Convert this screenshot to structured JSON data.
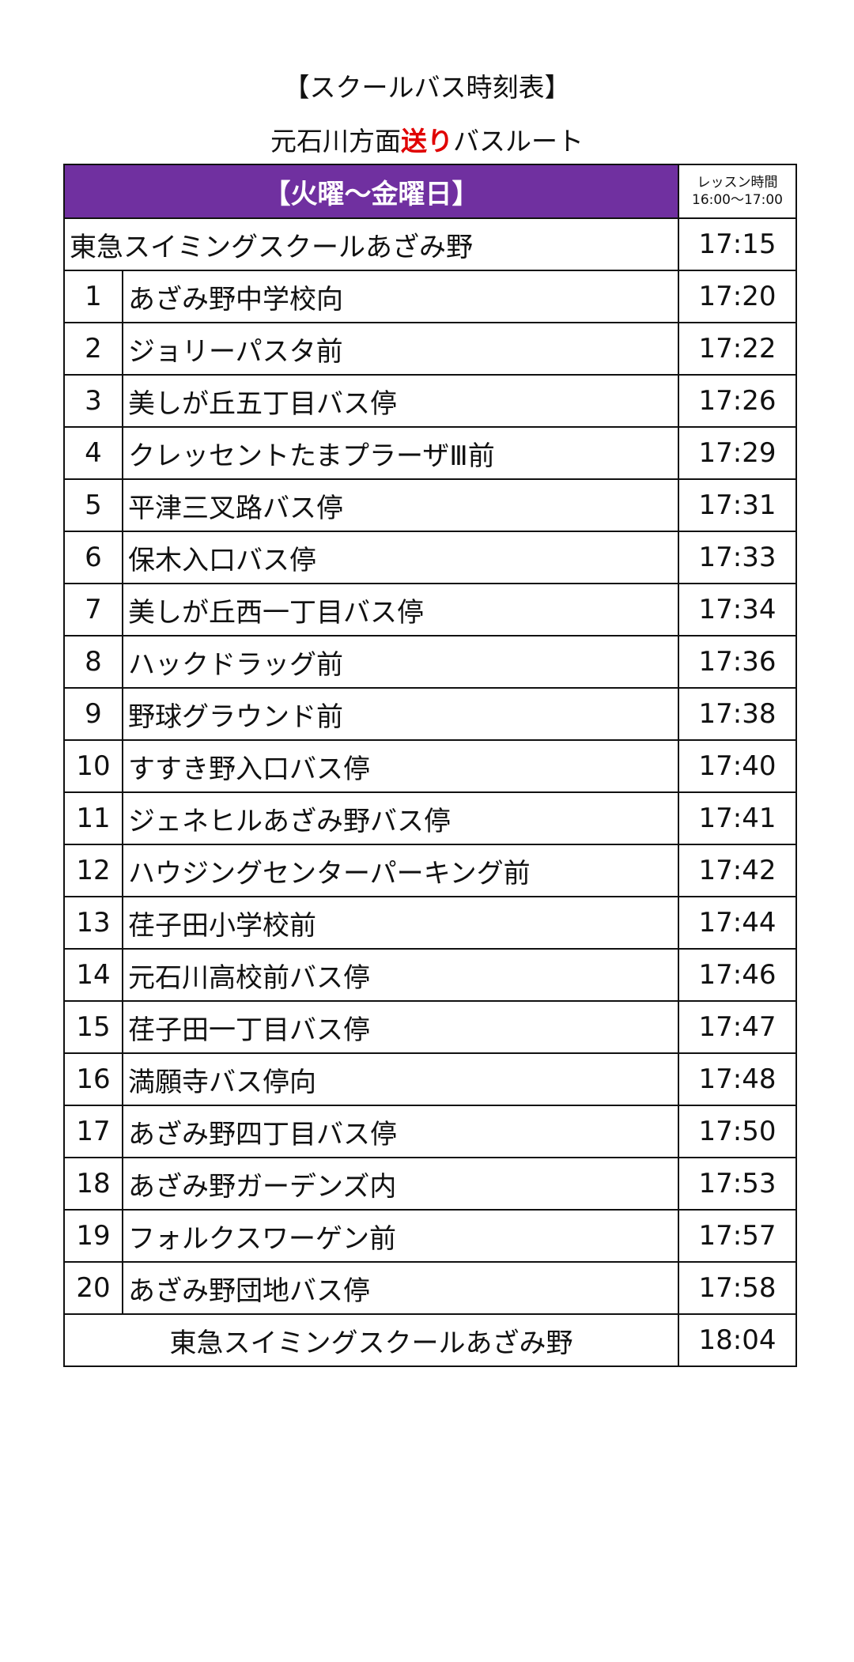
{
  "title": "【スクールバス時刻表】",
  "subtitle": {
    "before": "元石川方面",
    "highlight": "送り",
    "after": "バスルート",
    "highlight_color": "#e00000"
  },
  "header": {
    "days": "【火曜～金曜日】",
    "lesson_label": "レッスン時間",
    "lesson_time": "16:00～17:00",
    "bg_color": "#7030a0"
  },
  "start": {
    "name": "東急スイミングスクールあざみ野",
    "time": "17:15"
  },
  "stops": [
    {
      "no": "1",
      "name": "あざみ野中学校向",
      "time": "17:20"
    },
    {
      "no": "2",
      "name": "ジョリーパスタ前",
      "time": "17:22"
    },
    {
      "no": "3",
      "name": "美しが丘五丁目バス停",
      "time": "17:26"
    },
    {
      "no": "4",
      "name": "クレッセントたまプラーザⅢ前",
      "time": "17:29"
    },
    {
      "no": "5",
      "name": "平津三叉路バス停",
      "time": "17:31"
    },
    {
      "no": "6",
      "name": "保木入口バス停",
      "time": "17:33"
    },
    {
      "no": "7",
      "name": "美しが丘西一丁目バス停",
      "time": "17:34"
    },
    {
      "no": "8",
      "name": "ハックドラッグ前",
      "time": "17:36"
    },
    {
      "no": "9",
      "name": "野球グラウンド前",
      "time": "17:38"
    },
    {
      "no": "10",
      "name": "すすき野入口バス停",
      "time": "17:40"
    },
    {
      "no": "11",
      "name": "ジェネヒルあざみ野バス停",
      "time": "17:41"
    },
    {
      "no": "12",
      "name": "ハウジングセンターパーキング前",
      "time": "17:42"
    },
    {
      "no": "13",
      "name": "荏子田小学校前",
      "time": "17:44"
    },
    {
      "no": "14",
      "name": "元石川高校前バス停",
      "time": "17:46"
    },
    {
      "no": "15",
      "name": "荏子田一丁目バス停",
      "time": "17:47"
    },
    {
      "no": "16",
      "name": "満願寺バス停向",
      "time": "17:48"
    },
    {
      "no": "17",
      "name": "あざみ野四丁目バス停",
      "time": "17:50"
    },
    {
      "no": "18",
      "name": "あざみ野ガーデンズ内",
      "time": "17:53"
    },
    {
      "no": "19",
      "name": "フォルクスワーゲン前",
      "time": "17:57"
    },
    {
      "no": "20",
      "name": "あざみ野団地バス停",
      "time": "17:58"
    }
  ],
  "end": {
    "name": "東急スイミングスクールあざみ野",
    "time": "18:04"
  }
}
